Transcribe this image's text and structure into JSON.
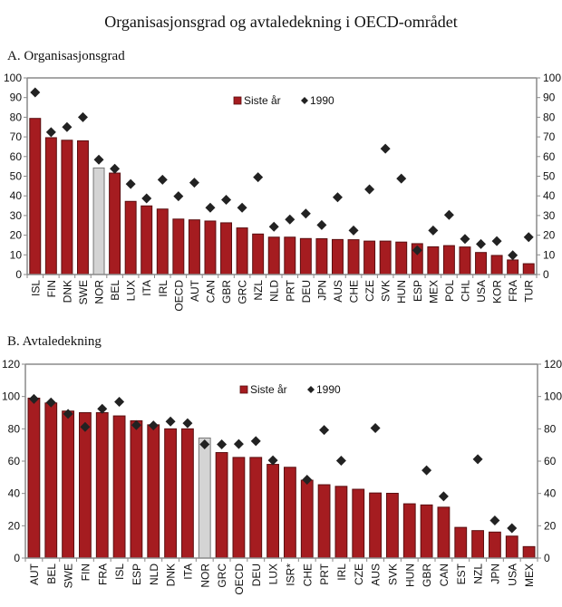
{
  "title": "Organisasjonsgrad og avtaledekning i OECD-området",
  "colors": {
    "bar": "#a51c20",
    "bar_highlight": "#d4d4d4",
    "marker": "#222222",
    "axis": "#8a8a8a"
  },
  "chart_data": [
    {
      "type": "bar",
      "title": "A.  Organisasjonsgrad",
      "xlabel": "",
      "ylabel": "",
      "ylim": [
        0,
        100
      ],
      "yticks": [
        0,
        10,
        20,
        30,
        40,
        50,
        60,
        70,
        80,
        90,
        100
      ],
      "dual_y_axis": true,
      "grid": false,
      "legend": {
        "placement": "top-center",
        "entries": [
          "Siste år",
          "1990"
        ]
      },
      "highlight": "NOR",
      "categories": [
        "ISL",
        "FIN",
        "DNK",
        "SWE",
        "NOR",
        "BEL",
        "LUX",
        "ITA",
        "IRL",
        "OECD",
        "AUT",
        "CAN",
        "GBR",
        "GRC",
        "NZL",
        "NLD",
        "PRT",
        "DEU",
        "JPN",
        "AUS",
        "CHE",
        "CZE",
        "SVK",
        "HUN",
        "ESP",
        "MEX",
        "POL",
        "CHL",
        "USA",
        "KOR",
        "FRA",
        "TUR"
      ],
      "series": [
        {
          "name": "Siste år",
          "kind": "bar",
          "values": [
            79.4,
            69.6,
            68.3,
            68.0,
            54.2,
            51.6,
            37.2,
            34.9,
            33.3,
            28.2,
            27.8,
            27.2,
            26.3,
            23.7,
            20.6,
            19.0,
            19.0,
            18.3,
            18.2,
            17.8,
            17.7,
            17.0,
            17.0,
            16.5,
            15.7,
            14.1,
            14.7,
            14.0,
            11.2,
            9.7,
            7.4,
            5.5
          ]
        },
        {
          "name": "1990",
          "kind": "scatter",
          "values": [
            92.6,
            72.4,
            75.0,
            80.0,
            58.4,
            53.8,
            46.0,
            38.7,
            48.2,
            39.8,
            46.7,
            34.0,
            38.0,
            34.0,
            49.5,
            24.3,
            28.0,
            31.0,
            25.2,
            39.3,
            22.4,
            43.3,
            64.0,
            48.8,
            12.3,
            22.4,
            30.3,
            18.1,
            15.5,
            17.0,
            9.8,
            19.0
          ]
        }
      ]
    },
    {
      "type": "bar",
      "title": "B. Avtaledekning",
      "xlabel": "",
      "ylabel": "",
      "ylim": [
        0,
        120
      ],
      "yticks": [
        0,
        20,
        40,
        60,
        80,
        100,
        120
      ],
      "dual_y_axis": true,
      "grid": false,
      "legend": {
        "placement": "top-center",
        "entries": [
          "Siste år",
          "1990"
        ]
      },
      "highlight": "NOR",
      "categories": [
        "AUT",
        "BEL",
        "SWE",
        "FIN",
        "FRA",
        "ISL",
        "ESP",
        "NLD",
        "DNK",
        "ITA",
        "NOR",
        "GRC",
        "OECD",
        "DEU",
        "LUX",
        "ISR*",
        "CHE",
        "PRT",
        "IRL",
        "CZE",
        "AUS",
        "SVK",
        "HUN",
        "GBR",
        "CAN",
        "EST",
        "NZL",
        "JPN",
        "USA",
        "MEX"
      ],
      "series": [
        {
          "name": "Siste år",
          "kind": "bar",
          "values": [
            99,
            96,
            91,
            90,
            90,
            88,
            85,
            82.5,
            80,
            80,
            74.3,
            65.3,
            62.3,
            62.3,
            58,
            56.2,
            48.2,
            45.4,
            44.4,
            42.6,
            40.3,
            40.1,
            33.6,
            32.9,
            31.5,
            19,
            17,
            16.1,
            13.6,
            7.1
          ]
        },
        {
          "name": "1990",
          "kind": "scatter",
          "values": [
            98.5,
            96.3,
            89.2,
            81.2,
            92.4,
            96.7,
            82.3,
            82.1,
            84.5,
            83.5,
            70.4,
            70.4,
            70.6,
            72.4,
            60.5,
            null,
            48.5,
            79.3,
            60.3,
            null,
            80.5,
            null,
            null,
            54.3,
            38.2,
            null,
            61.2,
            23.3,
            18.5,
            null
          ]
        }
      ]
    }
  ]
}
